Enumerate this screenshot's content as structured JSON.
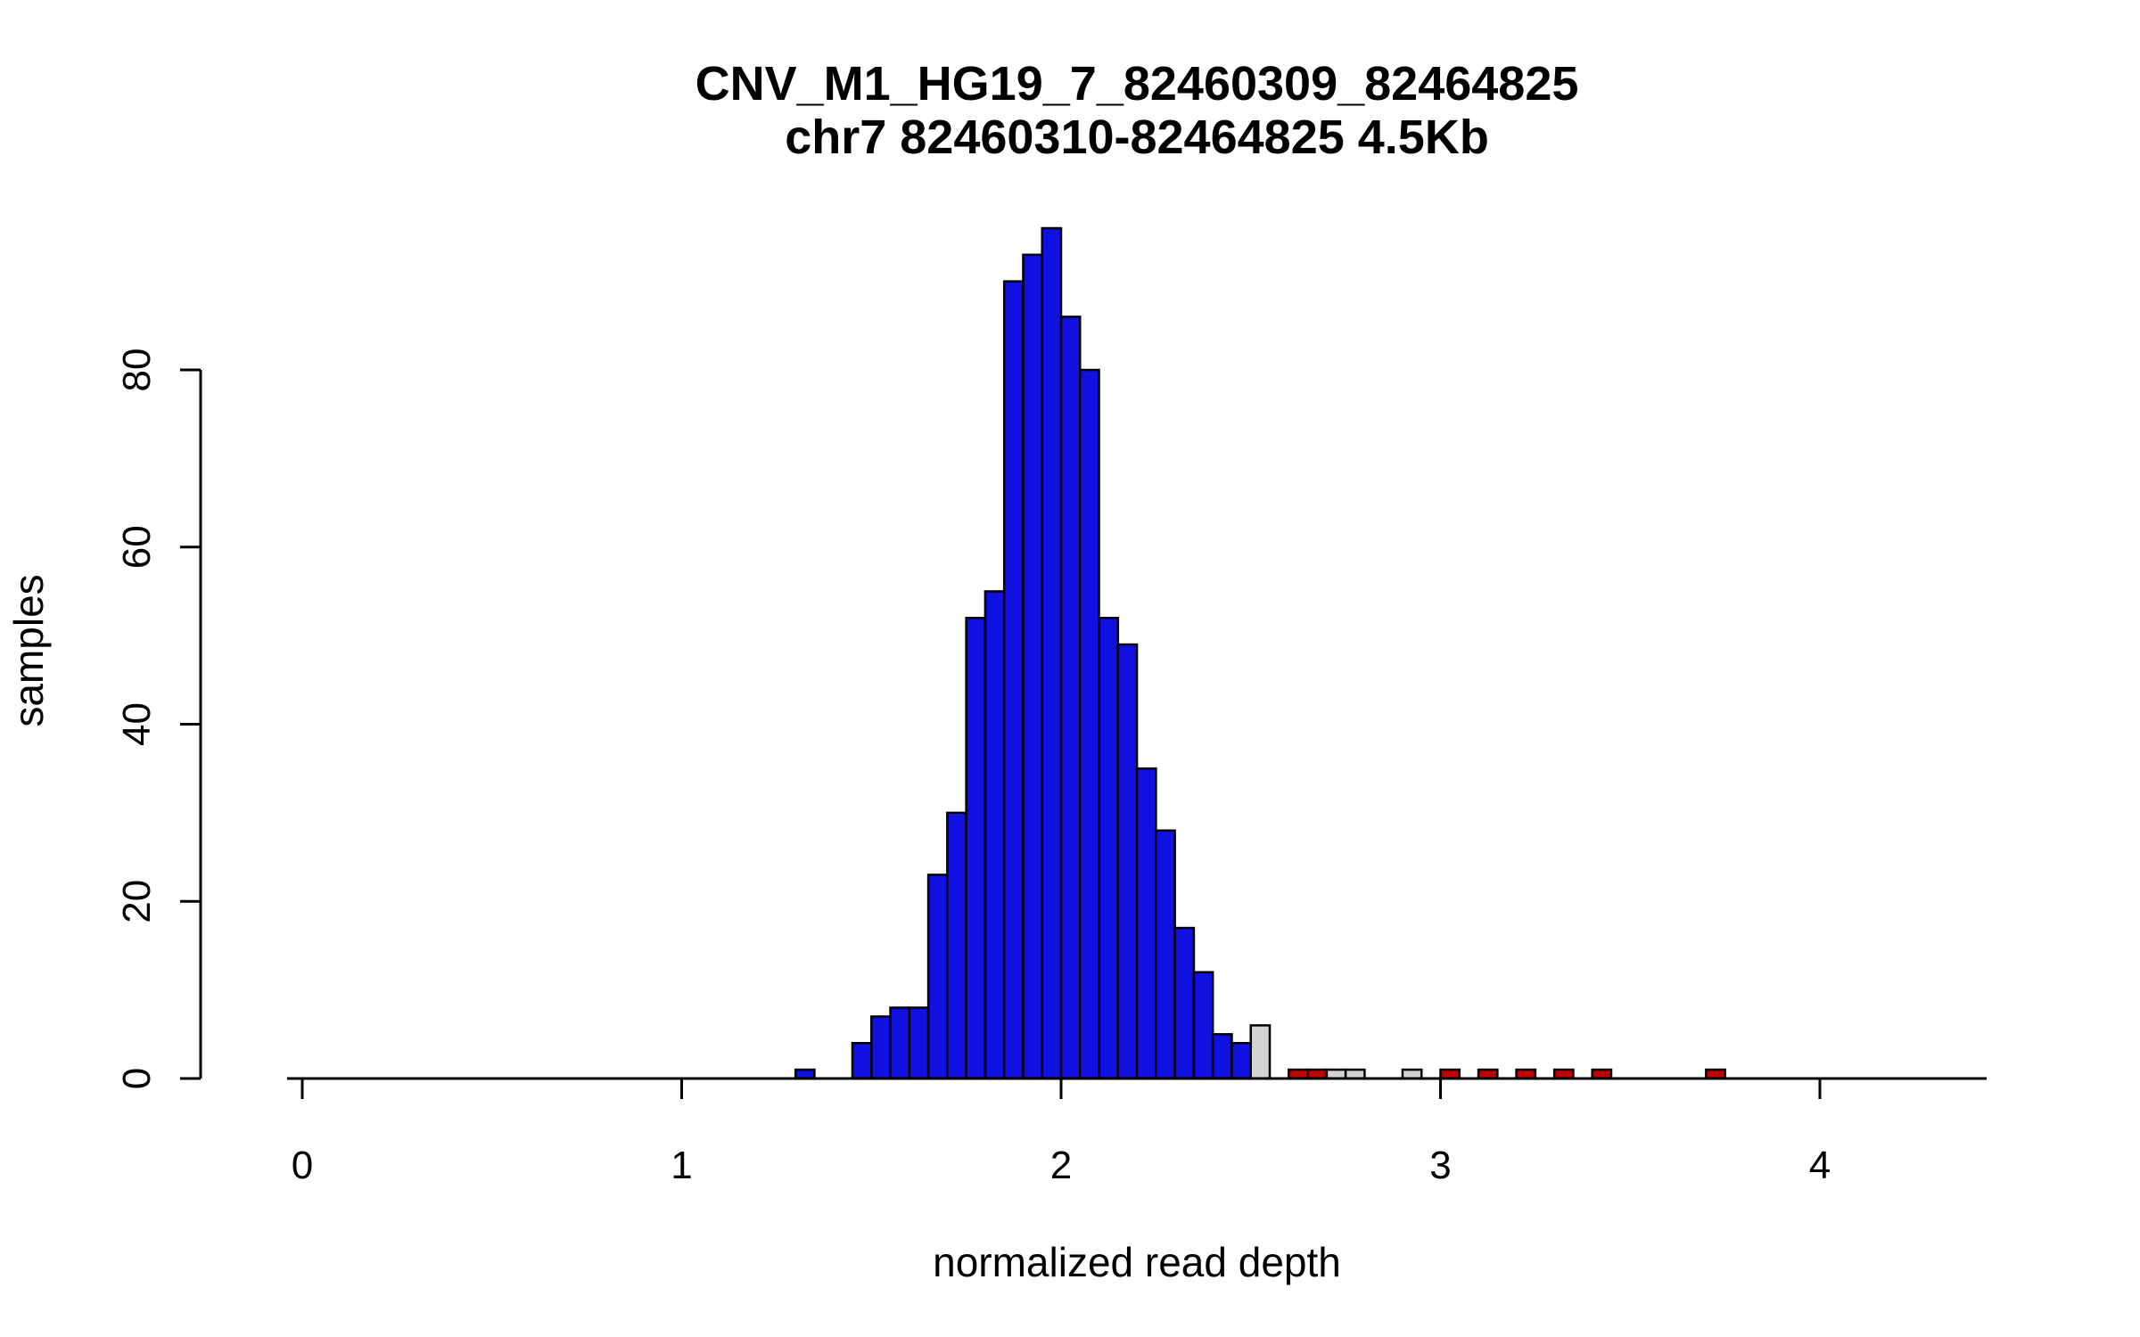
{
  "chart_data": {
    "type": "bar",
    "title": "CNV_M1_HG19_7_82460309_82464825",
    "subtitle": "chr7 82460310-82464825 4.5Kb",
    "xlabel": "normalized read depth",
    "ylabel": "samples",
    "x_ticks": [
      0,
      1,
      2,
      3,
      4
    ],
    "y_ticks": [
      0,
      20,
      40,
      60,
      80
    ],
    "xlim": [
      -0.27,
      4.45
    ],
    "ylim": [
      0,
      96
    ],
    "bin_width": 0.05,
    "grid": false,
    "legend": "none",
    "colors": {
      "blue": "#1010E0",
      "gray": "#D3D3D3",
      "red": "#C00000",
      "axis": "#000000",
      "bar_border": "#000000",
      "background": "#FFFFFF"
    },
    "bars": [
      {
        "x": 1.3,
        "count": 1,
        "color": "blue"
      },
      {
        "x": 1.45,
        "count": 4,
        "color": "blue"
      },
      {
        "x": 1.5,
        "count": 7,
        "color": "blue"
      },
      {
        "x": 1.55,
        "count": 8,
        "color": "blue"
      },
      {
        "x": 1.6,
        "count": 8,
        "color": "blue"
      },
      {
        "x": 1.65,
        "count": 23,
        "color": "blue"
      },
      {
        "x": 1.7,
        "count": 30,
        "color": "blue"
      },
      {
        "x": 1.75,
        "count": 52,
        "color": "blue"
      },
      {
        "x": 1.8,
        "count": 55,
        "color": "blue"
      },
      {
        "x": 1.85,
        "count": 90,
        "color": "blue"
      },
      {
        "x": 1.9,
        "count": 93,
        "color": "blue"
      },
      {
        "x": 1.95,
        "count": 96,
        "color": "blue"
      },
      {
        "x": 2.0,
        "count": 86,
        "color": "blue"
      },
      {
        "x": 2.05,
        "count": 80,
        "color": "blue"
      },
      {
        "x": 2.1,
        "count": 52,
        "color": "blue"
      },
      {
        "x": 2.15,
        "count": 49,
        "color": "blue"
      },
      {
        "x": 2.2,
        "count": 35,
        "color": "blue"
      },
      {
        "x": 2.25,
        "count": 28,
        "color": "blue"
      },
      {
        "x": 2.3,
        "count": 17,
        "color": "blue"
      },
      {
        "x": 2.35,
        "count": 12,
        "color": "blue"
      },
      {
        "x": 2.4,
        "count": 5,
        "color": "blue"
      },
      {
        "x": 2.45,
        "count": 4,
        "color": "blue"
      },
      {
        "x": 2.5,
        "count": 6,
        "color": "gray"
      },
      {
        "x": 2.6,
        "count": 1,
        "color": "red"
      },
      {
        "x": 2.65,
        "count": 1,
        "color": "red"
      },
      {
        "x": 2.7,
        "count": 1,
        "color": "gray"
      },
      {
        "x": 2.75,
        "count": 1,
        "color": "gray"
      },
      {
        "x": 2.9,
        "count": 1,
        "color": "gray"
      },
      {
        "x": 3.0,
        "count": 1,
        "color": "red"
      },
      {
        "x": 3.1,
        "count": 1,
        "color": "red"
      },
      {
        "x": 3.2,
        "count": 1,
        "color": "red"
      },
      {
        "x": 3.3,
        "count": 1,
        "color": "red"
      },
      {
        "x": 3.4,
        "count": 1,
        "color": "red"
      },
      {
        "x": 3.7,
        "count": 1,
        "color": "red"
      }
    ]
  }
}
